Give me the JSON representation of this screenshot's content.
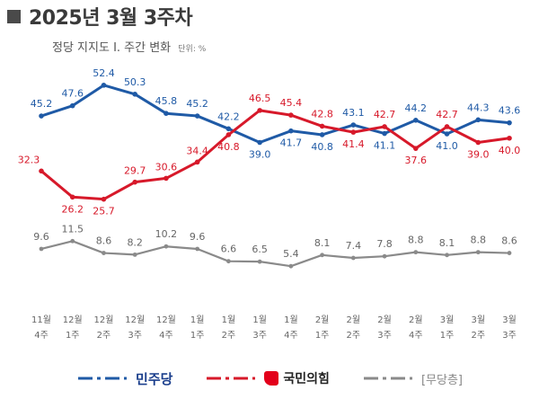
{
  "header": {
    "title": "2025년 3월 3주차",
    "subtitle": "정당 지지도 Ⅰ. 주간 변화",
    "unit": "단위: %"
  },
  "colors": {
    "minjoo": "#1f5aa6",
    "ppp": "#d7192a",
    "none": "#8a8a8a"
  },
  "legend": {
    "minjoo": "민주당",
    "ppp": "국민의힘",
    "none": "[무당층]"
  },
  "chart_data": {
    "type": "line",
    "categories": [
      [
        "11월",
        "4주"
      ],
      [
        "12월",
        "1주"
      ],
      [
        "12월",
        "2주"
      ],
      [
        "12월",
        "3주"
      ],
      [
        "12월",
        "4주"
      ],
      [
        "1월",
        "1주"
      ],
      [
        "1월",
        "2주"
      ],
      [
        "1월",
        "3주"
      ],
      [
        "1월",
        "4주"
      ],
      [
        "2월",
        "1주"
      ],
      [
        "2월",
        "2주"
      ],
      [
        "2월",
        "3주"
      ],
      [
        "2월",
        "4주"
      ],
      [
        "3월",
        "1주"
      ],
      [
        "3월",
        "2주"
      ],
      [
        "3월",
        "3주"
      ]
    ],
    "series": [
      {
        "name": "민주당",
        "key": "minjoo",
        "values": [
          45.2,
          47.6,
          52.4,
          50.3,
          45.8,
          45.2,
          42.2,
          39.0,
          41.7,
          40.8,
          43.1,
          41.1,
          44.2,
          41.0,
          44.3,
          43.6
        ]
      },
      {
        "name": "국민의힘",
        "key": "ppp",
        "values": [
          32.3,
          26.2,
          25.7,
          29.7,
          30.6,
          34.4,
          40.8,
          46.5,
          45.4,
          42.8,
          41.4,
          42.7,
          37.6,
          42.7,
          39.0,
          40.0
        ]
      },
      {
        "name": "[무당층]",
        "key": "none",
        "values": [
          9.6,
          11.5,
          8.6,
          8.2,
          10.2,
          9.6,
          6.6,
          6.5,
          5.4,
          8.1,
          7.4,
          7.8,
          8.8,
          8.1,
          8.8,
          8.6
        ]
      }
    ],
    "value_labels": {
      "minjoo": [
        "45.2",
        "47.6",
        "52.4",
        "50.3",
        "45.8",
        "45.2",
        "42.2",
        "39.0",
        "41.7",
        "40.8",
        "43.1",
        "41.1",
        "44.2",
        "41.0",
        "44.3",
        "43.6"
      ],
      "ppp": [
        "32.3",
        "26.2",
        "25.7",
        "29.7",
        "30.6",
        "34.4",
        "40.8",
        "46.5",
        "45.4",
        "42.8",
        "41.4",
        "42.7",
        "37.6",
        "42.7",
        "39.0",
        "40.0"
      ],
      "none": [
        "9.6",
        "11.5",
        "8.6",
        "8.2",
        "10.2",
        "9.6",
        "6.6",
        "6.5",
        "5.4",
        "8.1",
        "7.4",
        "7.8",
        "8.8",
        "8.1",
        "8.8",
        "8.6"
      ]
    }
  }
}
